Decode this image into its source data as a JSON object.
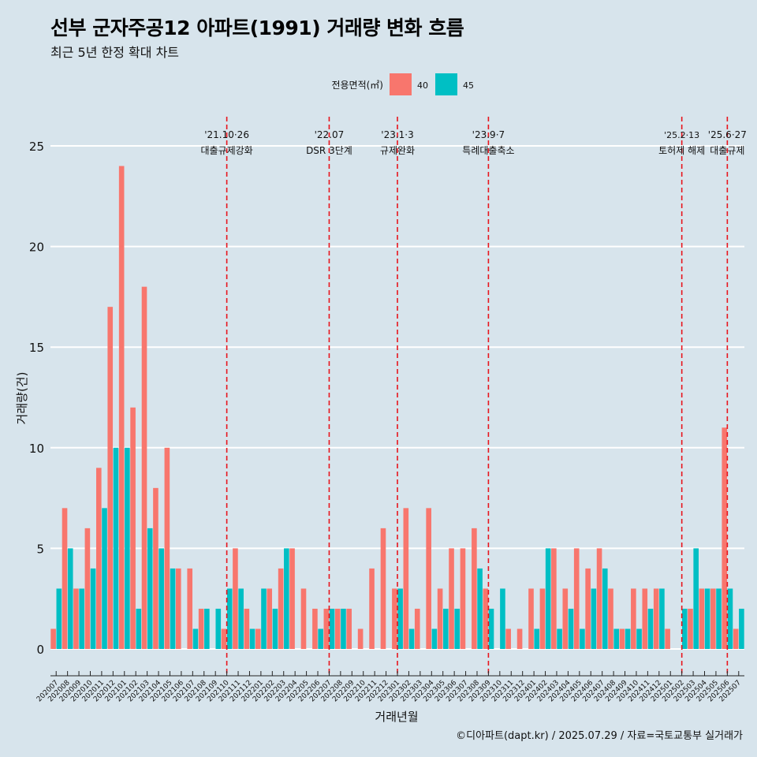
{
  "title": "선부 군자주공12 아파트(1991) 거래량 변화 흐름",
  "subtitle": "최근 5년 한정 확대 차트",
  "caption": "©디아파트(dapt.kr) / 2025.07.29 / 자료=국토교통부 실거래가",
  "colors": {
    "background": "#d7e4ec",
    "s40": "#f8766d",
    "s45": "#00bfc4",
    "vline": "#e8141c",
    "grid": "#ffffff"
  },
  "chart_data": {
    "type": "bar",
    "xlabel": "거래년월",
    "ylabel": "거래량(건)",
    "ylim": [
      0,
      25
    ],
    "y_ticks": [
      0,
      5,
      10,
      15,
      20,
      25
    ],
    "legend": {
      "title": "전용면적(㎡)",
      "position": "top"
    },
    "categories": [
      "202007",
      "202008",
      "202009",
      "202010",
      "202011",
      "202012",
      "202101",
      "202102",
      "202103",
      "202104",
      "202105",
      "202106",
      "202107",
      "202108",
      "202109",
      "202110",
      "202111",
      "202112",
      "202201",
      "202202",
      "202203",
      "202204",
      "202205",
      "202206",
      "202207",
      "202208",
      "202209",
      "202210",
      "202211",
      "202212",
      "202301",
      "202302",
      "202303",
      "202304",
      "202305",
      "202306",
      "202307",
      "202308",
      "202309",
      "202310",
      "202311",
      "202312",
      "202401",
      "202402",
      "202403",
      "202404",
      "202405",
      "202406",
      "202407",
      "202408",
      "202409",
      "202410",
      "202411",
      "202412",
      "202501",
      "202502",
      "202503",
      "202504",
      "202505",
      "202506",
      "202507"
    ],
    "series": [
      {
        "name": "40",
        "values": [
          1,
          7,
          3,
          6,
          9,
          17,
          24,
          12,
          18,
          8,
          10,
          4,
          4,
          2,
          null,
          1,
          5,
          2,
          1,
          3,
          4,
          5,
          3,
          2,
          2,
          2,
          2,
          1,
          4,
          6,
          3,
          7,
          2,
          7,
          3,
          5,
          5,
          6,
          3,
          null,
          1,
          1,
          3,
          3,
          5,
          3,
          5,
          4,
          5,
          3,
          1,
          3,
          3,
          3,
          1,
          null,
          2,
          3,
          3,
          11,
          1
        ]
      },
      {
        "name": "45",
        "values": [
          3,
          5,
          3,
          4,
          7,
          10,
          10,
          2,
          6,
          5,
          4,
          null,
          1,
          2,
          2,
          3,
          3,
          1,
          3,
          2,
          5,
          null,
          null,
          1,
          2,
          2,
          null,
          null,
          null,
          null,
          3,
          1,
          null,
          1,
          2,
          2,
          null,
          4,
          2,
          3,
          null,
          null,
          1,
          5,
          1,
          2,
          1,
          3,
          4,
          1,
          1,
          1,
          2,
          3,
          null,
          2,
          5,
          3,
          3,
          3,
          2
        ]
      }
    ],
    "events": [
      {
        "category": "202110",
        "date": "'21.10·26",
        "label": "대출규제강화"
      },
      {
        "category": "202207",
        "date": "'22.07",
        "label": "DSR 3단계"
      },
      {
        "category": "202301",
        "date": "'23.1·3",
        "label": "규제완화"
      },
      {
        "category": "202309",
        "date": "'23.9·7",
        "label": "특례대출축소"
      },
      {
        "category": "202502",
        "date": "'25.2·13",
        "label": "토허제 해제"
      },
      {
        "category": "202506",
        "date": "'25.6·27",
        "label": "대출규제"
      }
    ]
  }
}
